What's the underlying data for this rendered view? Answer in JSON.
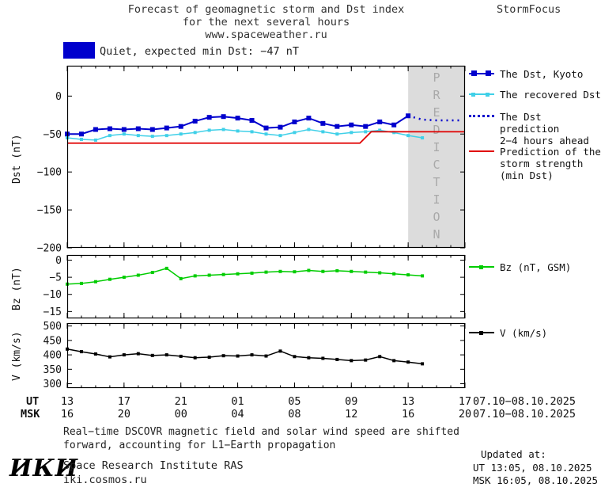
{
  "header": {
    "title_line1": "Forecast of geomagnetic storm and Dst index",
    "title_line2": "for the next several hours",
    "title_line3": "www.spaceweather.ru",
    "brand": "StormFocus"
  },
  "status": {
    "text": "Quiet, expected min Dst: −47 nT",
    "box_color": "#0000cd"
  },
  "legend": {
    "dst_kyoto": "The Dst, Kyoto",
    "recovered": "The recovered Dst",
    "prediction_line1": "The Dst prediction",
    "prediction_line2": "2−4 hours ahead",
    "storm_line1": "Prediction of the",
    "storm_line2": "storm strength",
    "storm_line3": "(min Dst)",
    "bz": "Bz (nT, GSM)",
    "v": "V (km/s)"
  },
  "xaxis": {
    "ut_label": "UT",
    "msk_label": "MSK",
    "hours": [
      0,
      4,
      8,
      12,
      16,
      20,
      24,
      28
    ],
    "ut_ticks": [
      "13",
      "17",
      "21",
      "01",
      "05",
      "09",
      "13",
      "17"
    ],
    "msk_ticks": [
      "16",
      "20",
      "00",
      "04",
      "08",
      "12",
      "16",
      "20"
    ],
    "ut_date": "07.10−08.10.2025",
    "msk_date": "07.10−08.10.2025"
  },
  "footer": {
    "note_line1": "Real−time DSCOVR magnetic field and solar wind speed are shifted",
    "note_line2": "forward, accounting for L1−Earth propagation",
    "logo": "ИКИ",
    "institute": "Space Research Institute RAS",
    "site": "iki.cosmos.ru",
    "updated_label": "Updated at:",
    "updated_ut": "UT  13:05, 08.10.2025",
    "updated_msk": "MSK 16:05, 08.10.2025"
  },
  "chart_data": [
    {
      "id": "dst",
      "type": "line",
      "ylabel": "Dst (nT)",
      "xlim": [
        0,
        28
      ],
      "ylim": [
        -200,
        40
      ],
      "yticks": [
        0,
        -50,
        -100,
        -150,
        -200
      ],
      "xticks": [
        0,
        4,
        8,
        12,
        16,
        20,
        24,
        28
      ],
      "band": {
        "x0": 24,
        "x1": 28,
        "color": "#dcdcdc",
        "label": "PREDICTION",
        "label_color": "#a9a9a9"
      },
      "series": [
        {
          "name": "The Dst, Kyoto",
          "color": "#0000cd",
          "width": 2,
          "marker": 6,
          "x": [
            0,
            1,
            2,
            3,
            4,
            5,
            6,
            7,
            8,
            9,
            10,
            11,
            12,
            13,
            14,
            15,
            16,
            17,
            18,
            19,
            20,
            21,
            22,
            23,
            24
          ],
          "y": [
            -50,
            -50,
            -44,
            -43,
            -44,
            -43,
            -44,
            -42,
            -40,
            -33,
            -28,
            -27,
            -29,
            -32,
            -42,
            -41,
            -34,
            -29,
            -36,
            -40,
            -38,
            -40,
            -34,
            -38,
            -26
          ]
        },
        {
          "name": "The recovered Dst",
          "color": "#40d0e8",
          "width": 1.5,
          "marker": 4,
          "x": [
            0,
            1,
            2,
            3,
            4,
            5,
            6,
            7,
            8,
            9,
            10,
            11,
            12,
            13,
            14,
            15,
            16,
            17,
            18,
            19,
            20,
            21,
            22,
            23,
            24,
            25
          ],
          "y": [
            -55,
            -57,
            -58,
            -52,
            -50,
            -52,
            -53,
            -52,
            -50,
            -48,
            -45,
            -44,
            -46,
            -47,
            -50,
            -52,
            -48,
            -44,
            -47,
            -50,
            -48,
            -47,
            -45,
            -48,
            -52,
            -55
          ]
        },
        {
          "name": "The Dst prediction 2−4 hours ahead",
          "color": "#0000cd",
          "width": 2.5,
          "dash": "2,5",
          "x": [
            24,
            25,
            26,
            27,
            27.8
          ],
          "y": [
            -26,
            -31,
            -32,
            -32,
            -32
          ]
        },
        {
          "name": "Prediction of the storm strength (min Dst)",
          "color": "#e00000",
          "width": 1.8,
          "x": [
            0,
            20.6,
            21.4,
            28
          ],
          "y": [
            -62,
            -62,
            -47,
            -47
          ]
        }
      ]
    },
    {
      "id": "bz",
      "type": "line",
      "ylabel": "Bz (nT)",
      "xlim": [
        0,
        28
      ],
      "ylim": [
        -17,
        1.5
      ],
      "yticks": [
        0,
        -5,
        -10,
        -15
      ],
      "xticks": [
        0,
        4,
        8,
        12,
        16,
        20,
        24,
        28
      ],
      "series": [
        {
          "name": "Bz (nT, GSM)",
          "color": "#00cc00",
          "width": 1.5,
          "marker": 4,
          "x": [
            0,
            1,
            2,
            3,
            4,
            5,
            6,
            7,
            8,
            9,
            10,
            11,
            12,
            13,
            14,
            15,
            16,
            17,
            18,
            19,
            20,
            21,
            22,
            23,
            24,
            25
          ],
          "y": [
            -7,
            -6.8,
            -6.3,
            -5.6,
            -5,
            -4.4,
            -3.6,
            -2.4,
            -5.4,
            -4.6,
            -4.4,
            -4.2,
            -4,
            -3.8,
            -3.5,
            -3.3,
            -3.4,
            -3,
            -3.3,
            -3.1,
            -3.3,
            -3.5,
            -3.7,
            -4,
            -4.3,
            -4.6
          ]
        }
      ]
    },
    {
      "id": "v",
      "type": "line",
      "ylabel": "V (km/s)",
      "xlim": [
        0,
        28
      ],
      "ylim": [
        285,
        510
      ],
      "yticks": [
        500,
        450,
        400,
        350,
        300
      ],
      "xticks": [
        0,
        4,
        8,
        12,
        16,
        20,
        24,
        28
      ],
      "series": [
        {
          "name": "V (km/s)",
          "color": "#000000",
          "width": 1.5,
          "marker": 4,
          "x": [
            0,
            1,
            2,
            3,
            4,
            5,
            6,
            7,
            8,
            9,
            10,
            11,
            12,
            13,
            14,
            15,
            16,
            17,
            18,
            19,
            20,
            21,
            22,
            23,
            24,
            25
          ],
          "y": [
            420,
            411,
            403,
            393,
            400,
            404,
            398,
            400,
            395,
            390,
            392,
            397,
            396,
            400,
            396,
            413,
            394,
            390,
            388,
            384,
            380,
            382,
            394,
            380,
            375,
            369
          ]
        }
      ]
    }
  ]
}
